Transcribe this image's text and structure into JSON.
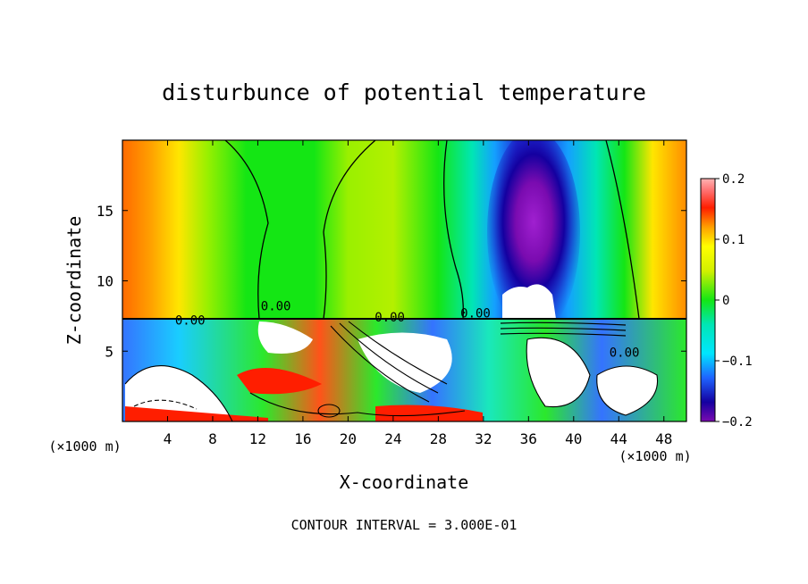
{
  "chart_data": {
    "type": "heatmap",
    "title": "disturbunce of potential temperature",
    "xlabel": "X-coordinate",
    "ylabel": "Z-coordinate",
    "x_unit": "(×1000 m)",
    "y_unit": "(×1000 m)",
    "xlim": [
      0,
      50
    ],
    "ylim": [
      0,
      20
    ],
    "x_ticks": [
      4,
      8,
      12,
      16,
      20,
      24,
      28,
      32,
      36,
      40,
      44,
      48
    ],
    "y_ticks": [
      5,
      10,
      15
    ],
    "x_tick_labels": [
      "4",
      "8",
      "12",
      "16",
      "20",
      "24",
      "28",
      "32",
      "36",
      "40",
      "44",
      "48"
    ],
    "y_tick_labels": [
      "5",
      "10",
      "15"
    ],
    "colorbar": {
      "min": -0.2,
      "max": 0.2,
      "ticks": [
        0.2,
        0.1,
        0,
        -0.1,
        -0.2
      ],
      "tick_labels": [
        "0.2",
        "0.1",
        "0",
        "−0.1",
        "−0.2"
      ],
      "colors": [
        "#7a0bb0",
        "#a020d0",
        "#1400a0",
        "#1e2ed8",
        "#1e64ff",
        "#14a0ff",
        "#00e6ff",
        "#00e6b4",
        "#00d264",
        "#00e614",
        "#78f000",
        "#d2f000",
        "#ffff00",
        "#ffd200",
        "#ffa000",
        "#ff6400",
        "#ff1e00",
        "#e60014",
        "#ff7070",
        "#ffb4b4"
      ]
    },
    "contour_labels": [
      {
        "text": "0.00",
        "x": 13.6,
        "z": 7.9
      },
      {
        "text": "0.00",
        "x": 6.0,
        "z": 6.9
      },
      {
        "text": "0.00",
        "x": 23.7,
        "z": 7.1
      },
      {
        "text": "0.00",
        "x": 31.3,
        "z": 7.4
      },
      {
        "text": "0.00",
        "x": 44.5,
        "z": 4.6
      }
    ],
    "annotation": "CONTOUR INTERVAL = 3.000E-01"
  }
}
